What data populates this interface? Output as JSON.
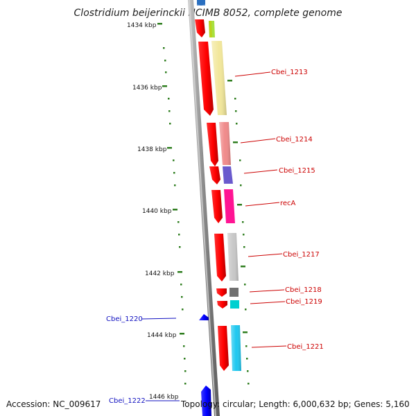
{
  "title": "Clostridium beijerinckii NCIMB 8052, complete genome",
  "scale_labels": [
    "1434 kbp",
    "1436 kbp",
    "1438 kbp",
    "1440 kbp",
    "1442 kbp",
    "1444 kbp",
    "1446 kbp"
  ],
  "forward_genes": [
    "Cbei_1213",
    "Cbei_1214",
    "Cbei_1215",
    "recA",
    "Cbei_1217",
    "Cbei_1218",
    "Cbei_1219",
    "Cbei_1221"
  ],
  "reverse_genes": [
    "Cbei_1220",
    "Cbei_1222"
  ],
  "colors": {
    "forward_strand": "#ff0000",
    "reverse_strand": "#0000ff",
    "backbone": "#8a8a8a",
    "scale_ticks": "#2e7d1e",
    "gene_1213": "#f2e79a",
    "gene_1214": "#f08a8a",
    "gene_1215": "#6a5acd",
    "gene_recA": "#ff1493",
    "gene_1217": "#c8c8c8",
    "gene_1218": "#707070",
    "gene_1219": "#00d0d0",
    "gene_1221": "#1ec8f0",
    "top_pair": "#a8e040"
  },
  "footer": {
    "accession": "Accession: NC_009617",
    "topology": "Topology: circular; Length: 6,000,632 bp; Genes: 5,160"
  }
}
